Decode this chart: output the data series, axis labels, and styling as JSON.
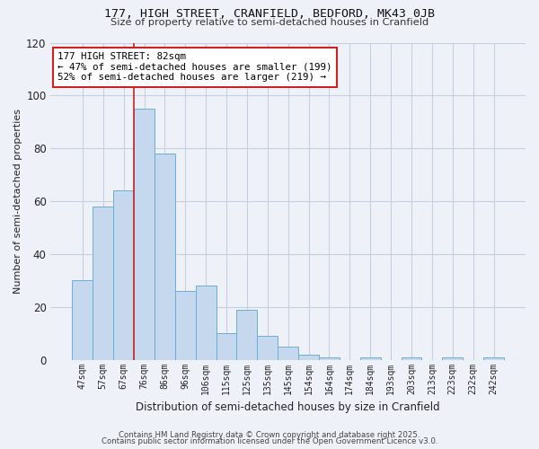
{
  "title": "177, HIGH STREET, CRANFIELD, BEDFORD, MK43 0JB",
  "subtitle": "Size of property relative to semi-detached houses in Cranfield",
  "xlabel": "Distribution of semi-detached houses by size in Cranfield",
  "ylabel": "Number of semi-detached properties",
  "bar_values": [
    30,
    58,
    64,
    95,
    78,
    26,
    28,
    10,
    19,
    9,
    5,
    2,
    1,
    0,
    1,
    0,
    1,
    0,
    1,
    0,
    1
  ],
  "bar_labels": [
    "47sqm",
    "57sqm",
    "67sqm",
    "76sqm",
    "86sqm",
    "96sqm",
    "106sqm",
    "115sqm",
    "125sqm",
    "135sqm",
    "145sqm",
    "154sqm",
    "164sqm",
    "174sqm",
    "184sqm",
    "193sqm",
    "203sqm",
    "213sqm",
    "223sqm",
    "232sqm",
    "242sqm"
  ],
  "bar_color": "#c5d8ed",
  "bar_edge_color": "#6aaed6",
  "red_line_x": 3,
  "red_line_color": "#cc2222",
  "annotation_title": "177 HIGH STREET: 82sqm",
  "annotation_line1": "← 47% of semi-detached houses are smaller (199)",
  "annotation_line2": "52% of semi-detached houses are larger (219) →",
  "annotation_box_facecolor": "#ffffff",
  "annotation_box_edgecolor": "#cc2222",
  "ylim": [
    0,
    120
  ],
  "yticks": [
    0,
    20,
    40,
    60,
    80,
    100,
    120
  ],
  "footer1": "Contains HM Land Registry data © Crown copyright and database right 2025.",
  "footer2": "Contains public sector information licensed under the Open Government Licence v3.0.",
  "bg_color": "#eef2f8",
  "grid_color": "#c5cfe0"
}
